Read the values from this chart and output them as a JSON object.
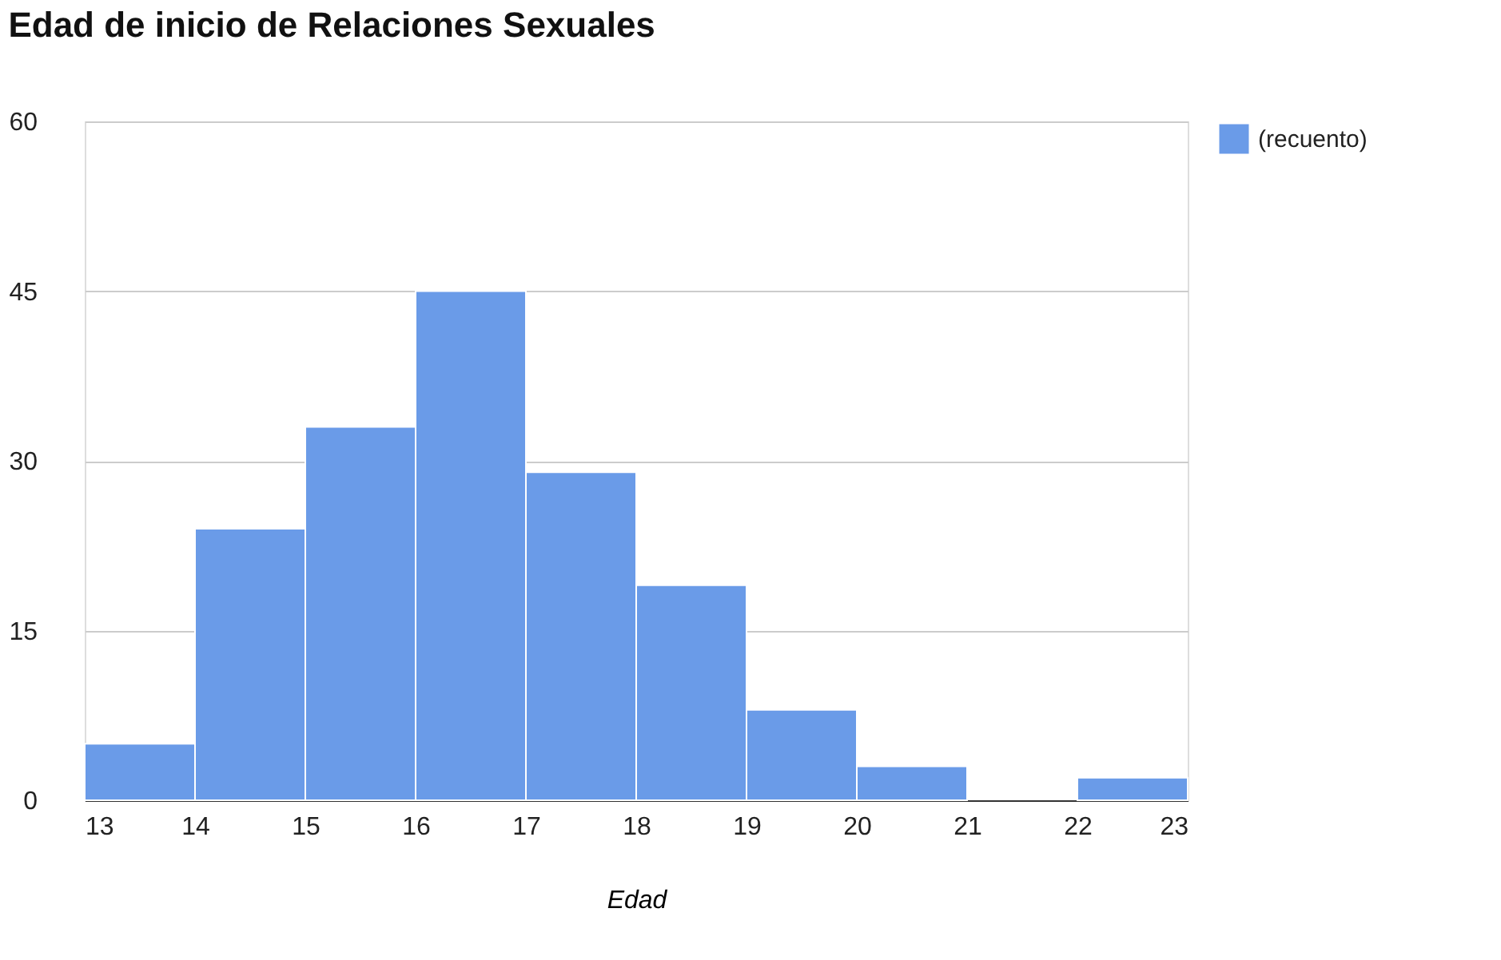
{
  "chart_data": {
    "type": "histogram",
    "title": "Edad de inicio de Relaciones Sexuales",
    "xlabel": "Edad",
    "bins": [
      13,
      14,
      15,
      16,
      17,
      18,
      19,
      20,
      21,
      22,
      23
    ],
    "series": [
      {
        "name": "(recuento)",
        "color": "#6a9be8",
        "values": [
          5,
          24,
          33,
          45,
          29,
          19,
          8,
          3,
          0,
          2
        ]
      }
    ],
    "xlim": [
      13,
      23
    ],
    "xticks": [
      13,
      14,
      15,
      16,
      17,
      18,
      19,
      20,
      21,
      22,
      23
    ],
    "ylim": [
      0,
      60
    ],
    "yticks": [
      0,
      15,
      30,
      45,
      60
    ],
    "grid": "y",
    "legend": "top right"
  }
}
